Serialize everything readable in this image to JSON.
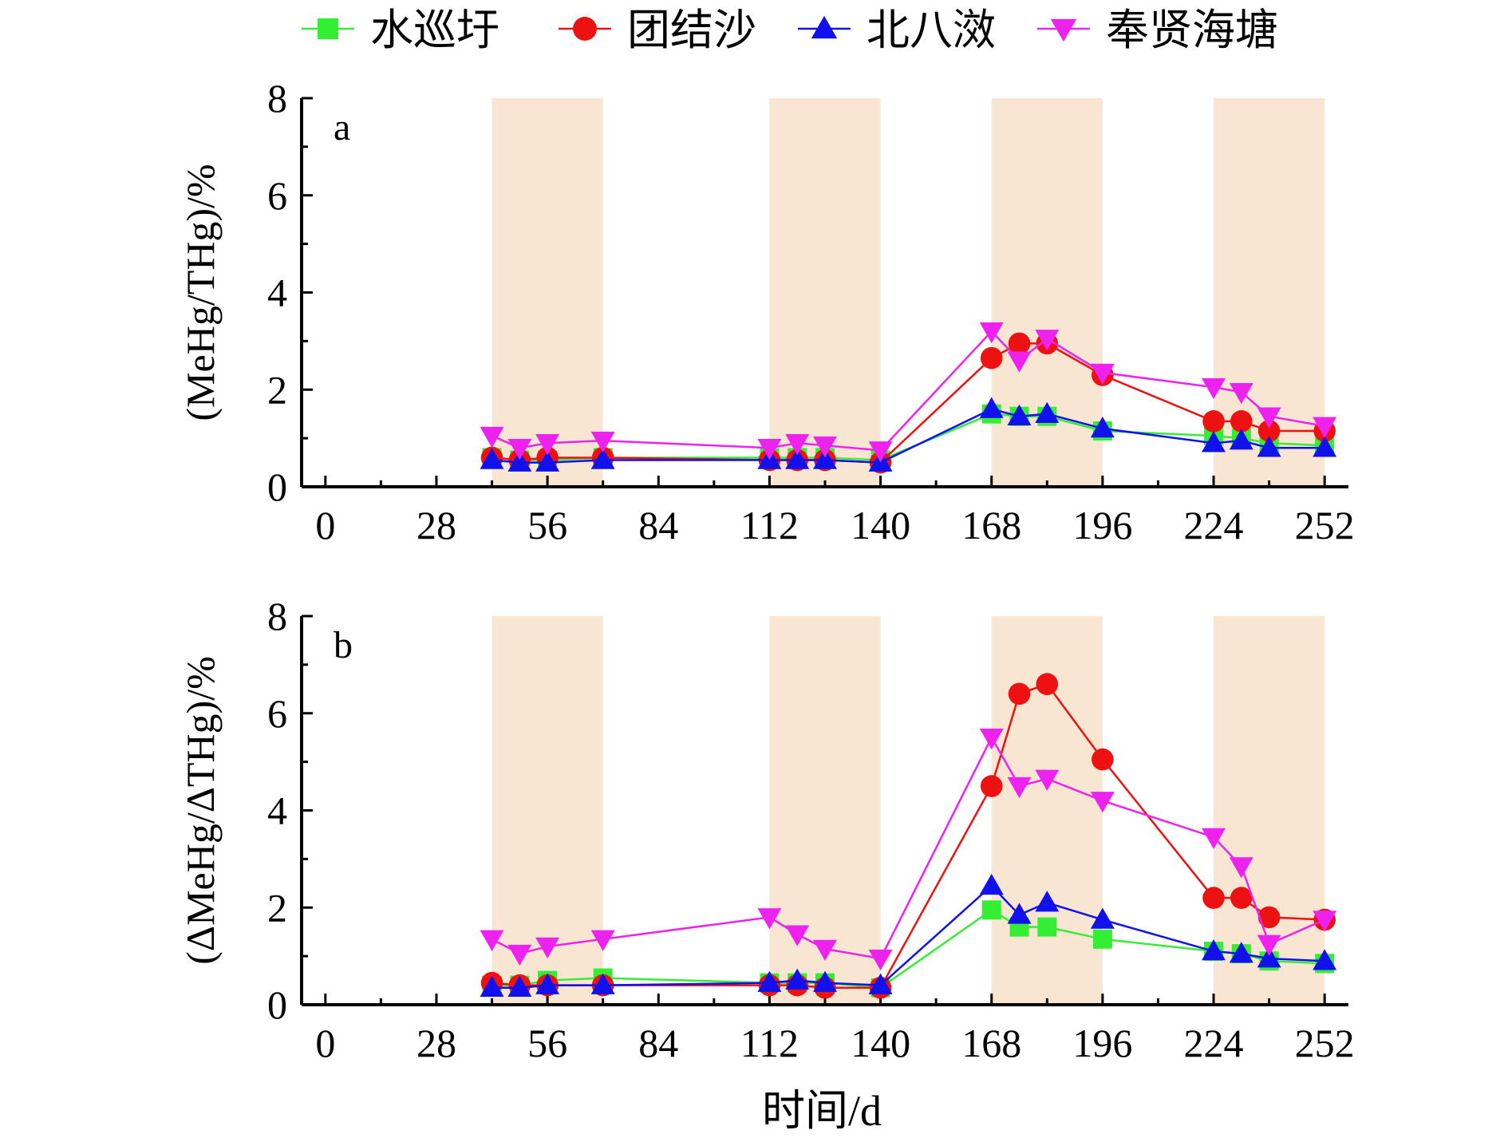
{
  "legend": [
    {
      "label": "水巡圩",
      "color": "#33ee33",
      "marker": "square"
    },
    {
      "label": "团结沙",
      "color": "#ee1111",
      "marker": "circle"
    },
    {
      "label": "北八滧",
      "color": "#1111ee",
      "marker": "triangle-up"
    },
    {
      "label": "奉贤海塘",
      "color": "#ee22ee",
      "marker": "triangle-down"
    }
  ],
  "xlabel": "时间/d",
  "chart_data": [
    {
      "type": "line",
      "panel": "a",
      "ylabel": "(MeHg/THg)/%",
      "xlim": [
        -6,
        258
      ],
      "ylim": [
        0,
        8
      ],
      "xticks": [
        0,
        28,
        56,
        84,
        112,
        140,
        168,
        196,
        224,
        252
      ],
      "yticks": [
        0,
        2,
        4,
        6,
        8
      ],
      "shaded_ranges": [
        [
          42,
          70
        ],
        [
          112,
          140
        ],
        [
          168,
          196
        ],
        [
          224,
          252
        ]
      ],
      "series": [
        {
          "name": "水巡圩",
          "color": "#33ee33",
          "marker": "square",
          "x": [
            42,
            49,
            56,
            70,
            112,
            119,
            126,
            140,
            168,
            175,
            182,
            196,
            224,
            231,
            238,
            252
          ],
          "y": [
            0.6,
            0.55,
            0.55,
            0.6,
            0.6,
            0.6,
            0.6,
            0.55,
            1.5,
            1.45,
            1.45,
            1.15,
            1.05,
            1.0,
            0.9,
            0.85
          ]
        },
        {
          "name": "团结沙",
          "color": "#ee1111",
          "marker": "circle",
          "x": [
            42,
            49,
            56,
            70,
            112,
            119,
            126,
            140,
            168,
            175,
            182,
            196,
            224,
            231,
            238,
            252
          ],
          "y": [
            0.6,
            0.55,
            0.6,
            0.6,
            0.55,
            0.55,
            0.55,
            0.5,
            2.65,
            2.95,
            2.95,
            2.3,
            1.35,
            1.35,
            1.15,
            1.15
          ]
        },
        {
          "name": "北八滧",
          "color": "#1111ee",
          "marker": "triangle-up",
          "x": [
            42,
            49,
            56,
            70,
            112,
            119,
            126,
            140,
            168,
            175,
            182,
            196,
            224,
            231,
            238,
            252
          ],
          "y": [
            0.55,
            0.5,
            0.5,
            0.55,
            0.55,
            0.55,
            0.55,
            0.5,
            1.6,
            1.45,
            1.5,
            1.2,
            0.9,
            0.95,
            0.8,
            0.8
          ]
        },
        {
          "name": "奉贤海塘",
          "color": "#ee22ee",
          "marker": "triangle-down",
          "x": [
            42,
            49,
            56,
            70,
            112,
            119,
            126,
            140,
            168,
            175,
            182,
            196,
            224,
            231,
            238,
            252
          ],
          "y": [
            1.05,
            0.8,
            0.9,
            0.95,
            0.8,
            0.9,
            0.85,
            0.75,
            3.2,
            2.6,
            3.05,
            2.35,
            2.05,
            1.95,
            1.45,
            1.25
          ]
        }
      ]
    },
    {
      "type": "line",
      "panel": "b",
      "ylabel": "(ΔMeHg/ΔTHg)/%",
      "xlim": [
        -6,
        258
      ],
      "ylim": [
        0,
        8
      ],
      "xticks": [
        0,
        28,
        56,
        84,
        112,
        140,
        168,
        196,
        224,
        252
      ],
      "yticks": [
        0,
        2,
        4,
        6,
        8
      ],
      "shaded_ranges": [
        [
          42,
          70
        ],
        [
          112,
          140
        ],
        [
          168,
          196
        ],
        [
          224,
          252
        ]
      ],
      "series": [
        {
          "name": "水巡圩",
          "color": "#33ee33",
          "marker": "square",
          "x": [
            42,
            49,
            56,
            70,
            112,
            119,
            126,
            140,
            168,
            175,
            182,
            196,
            224,
            231,
            238,
            252
          ],
          "y": [
            0.4,
            0.4,
            0.5,
            0.55,
            0.45,
            0.45,
            0.45,
            0.35,
            1.95,
            1.6,
            1.6,
            1.35,
            1.1,
            1.05,
            0.9,
            0.85
          ]
        },
        {
          "name": "团结沙",
          "color": "#ee1111",
          "marker": "circle",
          "x": [
            42,
            49,
            56,
            70,
            112,
            119,
            126,
            140,
            168,
            175,
            182,
            196,
            224,
            231,
            238,
            252
          ],
          "y": [
            0.45,
            0.4,
            0.4,
            0.4,
            0.4,
            0.4,
            0.35,
            0.35,
            4.5,
            6.4,
            6.6,
            5.05,
            2.2,
            2.2,
            1.8,
            1.75
          ]
        },
        {
          "name": "北八滧",
          "color": "#1111ee",
          "marker": "triangle-up",
          "x": [
            42,
            49,
            56,
            70,
            112,
            119,
            126,
            140,
            168,
            175,
            182,
            196,
            224,
            231,
            238,
            252
          ],
          "y": [
            0.35,
            0.35,
            0.4,
            0.4,
            0.45,
            0.5,
            0.45,
            0.4,
            2.45,
            1.85,
            2.1,
            1.75,
            1.1,
            1.05,
            0.95,
            0.9
          ]
        },
        {
          "name": "奉贤海塘",
          "color": "#ee22ee",
          "marker": "triangle-down",
          "x": [
            42,
            49,
            56,
            70,
            112,
            119,
            126,
            140,
            168,
            175,
            182,
            196,
            224,
            231,
            238,
            252
          ],
          "y": [
            1.35,
            1.05,
            1.2,
            1.35,
            1.8,
            1.45,
            1.15,
            0.95,
            5.5,
            4.5,
            4.65,
            4.2,
            3.45,
            2.85,
            1.25,
            1.75
          ]
        }
      ]
    }
  ]
}
